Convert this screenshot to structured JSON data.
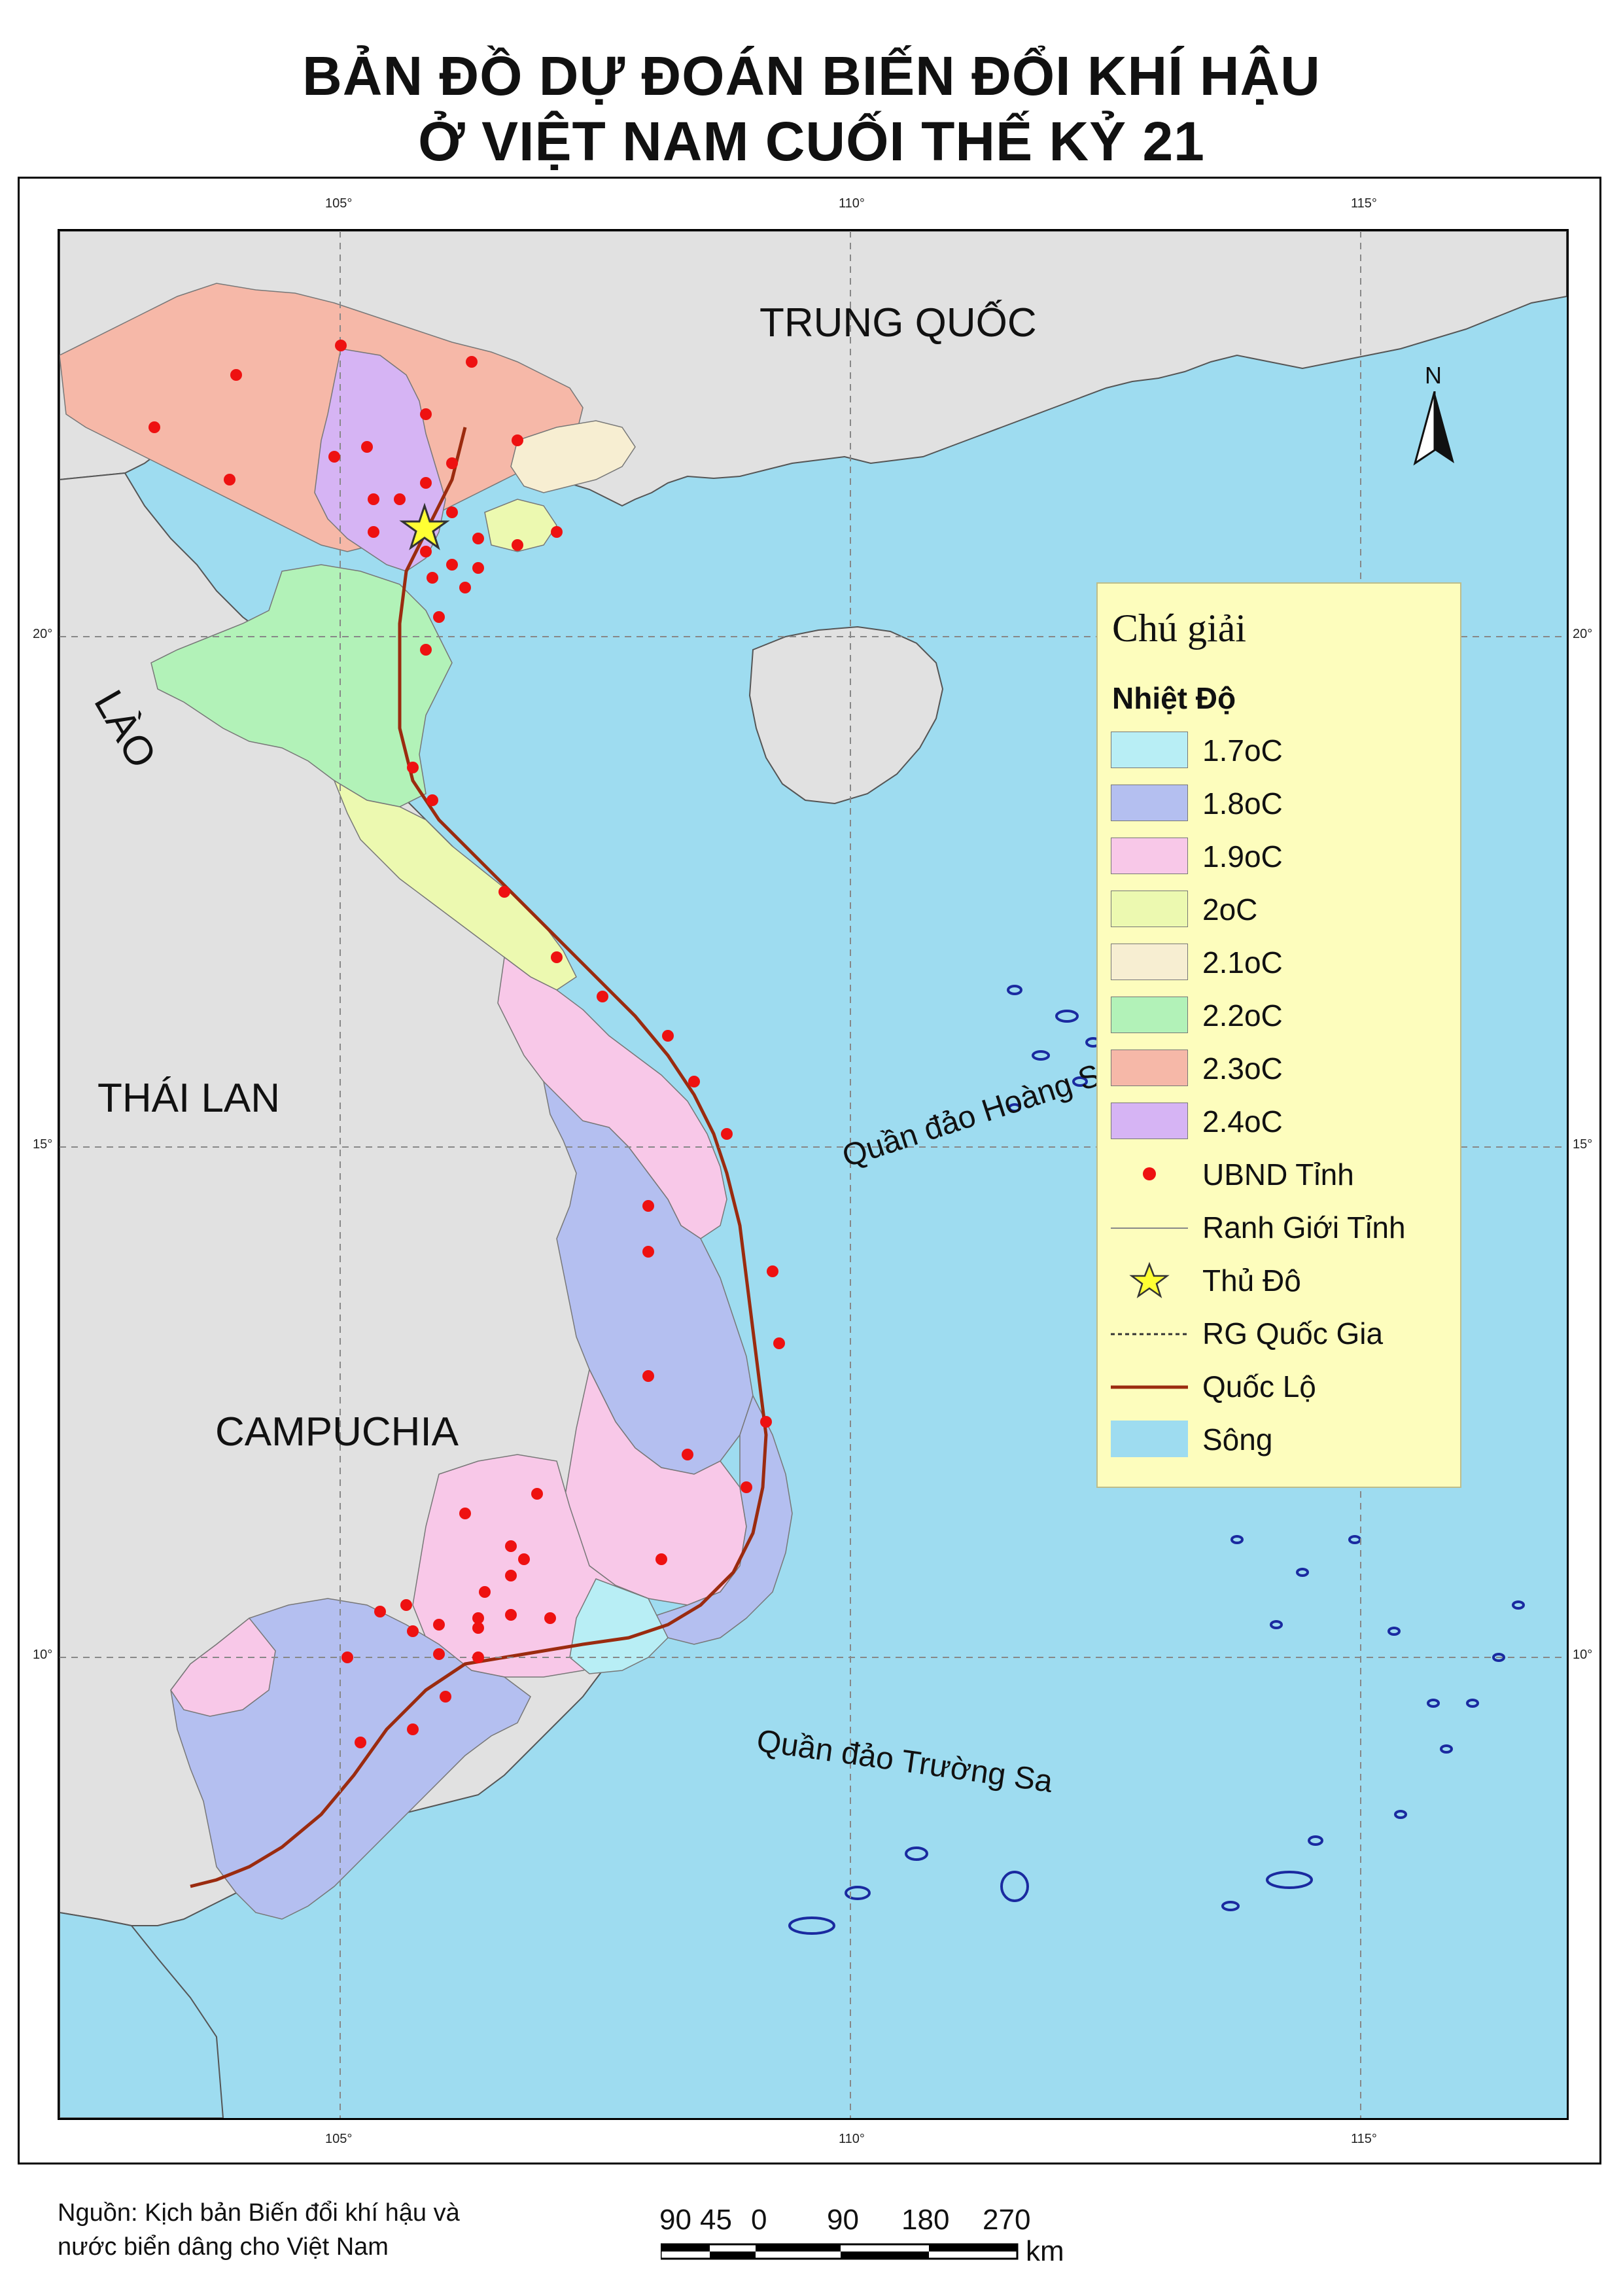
{
  "title": {
    "line1": "BẢN ĐỒ DỰ ĐOÁN BIẾN ĐỔI KHÍ HẬU",
    "line2": "Ở VIỆT NAM CUỐI THẾ KỶ 21"
  },
  "graticule": {
    "lon_top": [
      "105°",
      "110°",
      "115°"
    ],
    "lon_bottom": [
      "105°",
      "110°",
      "115°"
    ],
    "lat_left": [
      "20°",
      "15°",
      "10°"
    ],
    "lat_right": [
      "20°",
      "15°",
      "10°"
    ]
  },
  "labels": {
    "china": "TRUNG QUỐC",
    "laos": "LÀO",
    "thailand": "THÁI LAN",
    "cambodia": "CAMPUCHIA",
    "paracel": "Quần đảo Hoàng Sa",
    "spratly": "Quần đảo Trường Sa",
    "north": "N"
  },
  "legend": {
    "title": "Chú giải",
    "subtitle": "Nhiệt Độ",
    "classes": [
      {
        "label": "1.7oC",
        "color": "#b8eef5"
      },
      {
        "label": "1.8oC",
        "color": "#b4bff0"
      },
      {
        "label": "1.9oC",
        "color": "#f8c8e8"
      },
      {
        "label": "2oC",
        "color": "#ecf9b0"
      },
      {
        "label": "2.1oC",
        "color": "#f7eed2"
      },
      {
        "label": "2.2oC",
        "color": "#b2f2b8"
      },
      {
        "label": "2.3oC",
        "color": "#f6b8a8"
      },
      {
        "label": "2.4oC",
        "color": "#d6b4f4"
      }
    ],
    "ubnd": "UBND Tỉnh",
    "boundary": "Ranh Giới Tỉnh",
    "capital": "Thủ Đô",
    "national_border": "RG Quốc Gia",
    "highway": "Quốc Lộ",
    "river": "Sông"
  },
  "source": {
    "line1": "Nguồn: Kịch bản Biến đổi khí hậu và",
    "line2": "nước biển dâng cho Việt Nam"
  },
  "scalebar": {
    "ticks": [
      "90",
      "45",
      "0",
      "90",
      "180",
      "270"
    ],
    "unit": "km"
  },
  "colors": {
    "sea": "#9edcf0",
    "land": "#e1e1e1",
    "ubnd_dot": "#ee1111",
    "highway": "#9b2b0f",
    "island": "#1a2aa0"
  }
}
